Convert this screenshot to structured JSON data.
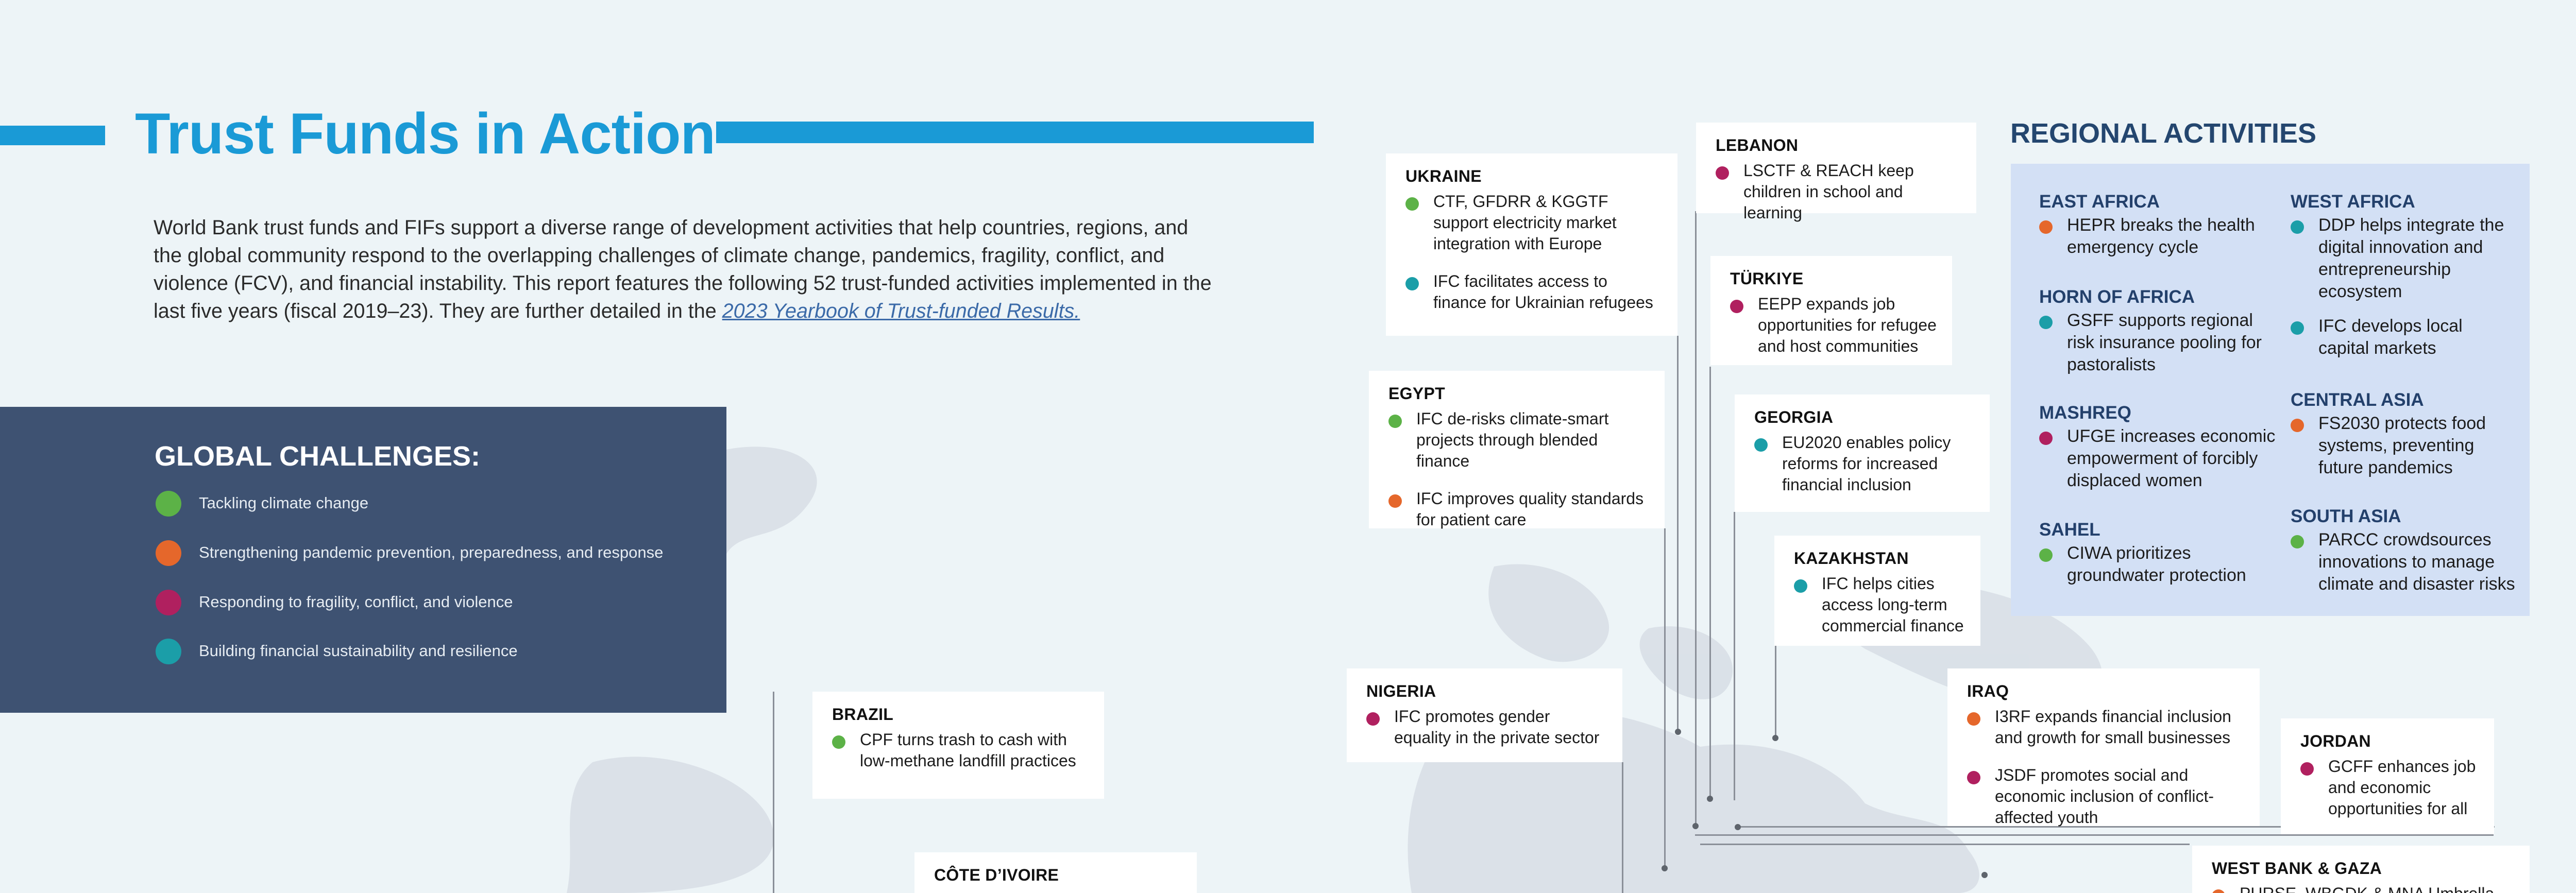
{
  "header": {
    "title": "Trust Funds in Action",
    "intro_text": "World Bank trust funds and FIFs support a diverse range of development activities that help countries, regions, and the global community respond to the overlapping challenges of climate change, pandemics, fragility, conflict, and violence (FCV), and financial instability. This report features the following 52 trust-funded activities implemented in the last five years (fiscal 2019–23). They are further detailed in the ",
    "intro_link": "2023 Yearbook of Trust-funded Results."
  },
  "colors": {
    "climate": "#5cb247",
    "pandemic": "#e5672b",
    "fcv": "#b0205f",
    "financial": "#1b9ea8",
    "title_blue": "#1a9ad6",
    "panel": "#3e5272",
    "regional_panel": "#d3e0f5"
  },
  "global_challenges": {
    "title": "GLOBAL CHALLENGES:",
    "items": [
      "Tackling climate change",
      "Strengthening pandemic prevention, preparedness, and response",
      "Responding to fragility, conflict, and violence",
      "Building financial sustainability and resilience"
    ]
  },
  "callouts": {
    "brazil": {
      "country": "BRAZIL",
      "items": [
        "CPF turns trash to cash with low-methane landfill practices"
      ]
    },
    "cote": {
      "country": "CÔTE D’IVOIRE"
    },
    "ukraine": {
      "country": "UKRAINE",
      "items": [
        "CTF, GFDRR & KGGTF support electricity market integration with Europe",
        "IFC facilitates access to finance for Ukrainian refugees"
      ]
    },
    "lebanon": {
      "country": "LEBANON",
      "items": [
        "LSCTF & REACH keep children in school and learning"
      ]
    },
    "turkiye": {
      "country": "TÜRKIYE",
      "items": [
        "EEPP expands job opportunities for refugee and host communities"
      ]
    },
    "egypt": {
      "country": "EGYPT",
      "items": [
        "IFC de-risks climate-smart projects through blended finance",
        "IFC improves quality standards for patient care"
      ]
    },
    "georgia": {
      "country": "GEORGIA",
      "items": [
        "EU2020 enables policy reforms for increased financial inclusion"
      ]
    },
    "kazakhstan": {
      "country": "KAZAKHSTAN",
      "items": [
        "IFC helps cities access long-term commercial finance"
      ]
    },
    "nigeria": {
      "country": "NIGERIA",
      "items": [
        "IFC promotes gender equality in the private sector"
      ]
    },
    "iraq": {
      "country": "IRAQ",
      "items": [
        "I3RF expands financial inclusion and growth for small businesses",
        "JSDF promotes social and economic inclusion of conflict-affected youth"
      ]
    },
    "jordan": {
      "country": "JORDAN",
      "items": [
        "GCFF enhances job and economic opportunities for all"
      ]
    },
    "westbank": {
      "country": "WEST BANK & GAZA",
      "items": [
        "PURSE, WBGDK & MNA Umbrella"
      ]
    }
  },
  "regional": {
    "title": "REGIONAL ACTIVITIES",
    "left": [
      {
        "region": "EAST AFRICA",
        "text": "HEPR breaks the health emergency cycle"
      },
      {
        "region": "HORN OF AFRICA",
        "text": "GSFF supports regional risk insurance pooling for pastoralists"
      },
      {
        "region": "MASHREQ",
        "text": "UFGE increases economic empowerment of forcibly displaced women"
      },
      {
        "region": "SAHEL",
        "text": "CIWA prioritizes groundwater protection"
      }
    ],
    "right": [
      {
        "region": "WEST AFRICA",
        "items": [
          "DDP helps integrate the digital innovation and entrepreneurship ecosystem",
          "IFC develops local capital markets"
        ]
      },
      {
        "region": "CENTRAL ASIA",
        "text": "FS2030 protects food systems, preventing future pandemics"
      },
      {
        "region": "SOUTH ASIA",
        "text": "PARCC crowdsources innovations to manage climate and disaster risks"
      }
    ]
  }
}
